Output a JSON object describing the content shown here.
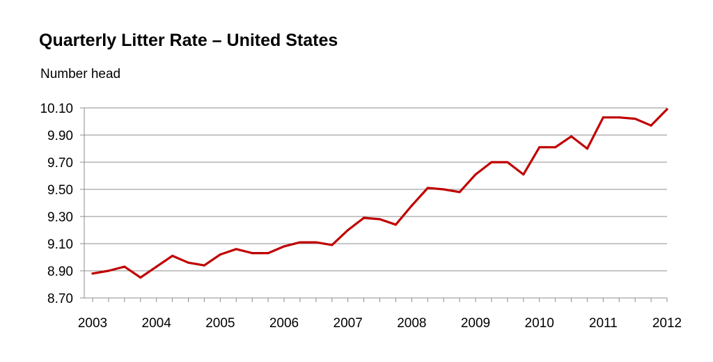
{
  "chart_data": {
    "type": "line",
    "title": "Quarterly Litter Rate – United States",
    "ylabel": "Number head",
    "xlabel": "",
    "color": "#c00000",
    "grid": true,
    "ylim": [
      8.7,
      10.1
    ],
    "yticks": [
      "8.70",
      "8.90",
      "9.10",
      "9.30",
      "9.50",
      "9.70",
      "9.90",
      "10.10"
    ],
    "xticks": [
      "2003",
      "2004",
      "2005",
      "2006",
      "2007",
      "2008",
      "2009",
      "2010",
      "2011",
      "2012"
    ],
    "series": [
      {
        "values": [
          8.88,
          8.9,
          8.93,
          8.85,
          8.93,
          9.01,
          8.96,
          8.94,
          9.02,
          9.06,
          9.03,
          9.03,
          9.08,
          9.11,
          9.11,
          9.09,
          9.2,
          9.29,
          9.28,
          9.24,
          9.38,
          9.51,
          9.5,
          9.48,
          9.61,
          9.7,
          9.7,
          9.61,
          9.81,
          9.81,
          9.89,
          9.8,
          10.03,
          10.03,
          10.02,
          9.97,
          10.09
        ]
      }
    ]
  }
}
